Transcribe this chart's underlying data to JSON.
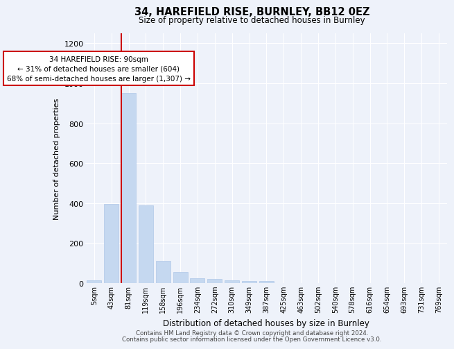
{
  "title": "34, HAREFIELD RISE, BURNLEY, BB12 0EZ",
  "subtitle": "Size of property relative to detached houses in Burnley",
  "xlabel": "Distribution of detached houses by size in Burnley",
  "ylabel": "Number of detached properties",
  "categories": [
    "5sqm",
    "43sqm",
    "81sqm",
    "119sqm",
    "158sqm",
    "196sqm",
    "234sqm",
    "272sqm",
    "310sqm",
    "349sqm",
    "387sqm",
    "425sqm",
    "463sqm",
    "502sqm",
    "540sqm",
    "578sqm",
    "616sqm",
    "654sqm",
    "693sqm",
    "731sqm",
    "769sqm"
  ],
  "values": [
    15,
    395,
    950,
    390,
    110,
    55,
    25,
    20,
    15,
    12,
    10,
    0,
    0,
    0,
    0,
    0,
    0,
    0,
    0,
    0,
    0
  ],
  "bar_color": "#c5d8f0",
  "bar_edge_color": "#b0c8e8",
  "vline_color": "#cc0000",
  "annotation_text": "34 HAREFIELD RISE: 90sqm\n← 31% of detached houses are smaller (604)\n68% of semi-detached houses are larger (1,307) →",
  "annotation_box_color": "#ffffff",
  "annotation_box_edge_color": "#cc0000",
  "ylim": [
    0,
    1250
  ],
  "yticks": [
    0,
    200,
    400,
    600,
    800,
    1000,
    1200
  ],
  "background_color": "#eef2fa",
  "grid_color": "#ffffff",
  "footer_line1": "Contains HM Land Registry data © Crown copyright and database right 2024.",
  "footer_line2": "Contains public sector information licensed under the Open Government Licence v3.0."
}
